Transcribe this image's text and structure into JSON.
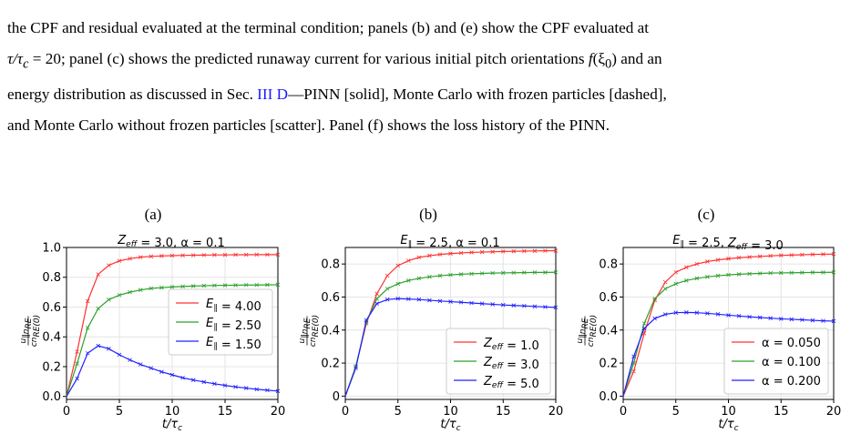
{
  "caption": {
    "line1_tail": "the CPF and residual evaluated at the terminal condition; panels (b) and (e) show the CPF evaluated at",
    "line2_a": "τ/τ",
    "line2_b": " = 20; panel (c) shows the predicted runaway current for various initial pitch orientations ",
    "line2_c": "f",
    "line2_d": "(ξ",
    "line2_e": ") and an",
    "line3_a": "energy distribution as discussed in Sec. ",
    "line3_ref": "III D",
    "line3_b": "—PINN [solid], Monte Carlo with frozen particles [dashed],",
    "line4": "and Monte Carlo without frozen particles [scatter]. Panel (f) shows the loss history of the PINN."
  },
  "panels": [
    {
      "letter": "(a)",
      "title": "Z_eff = 3.0, α = 0.1"
    },
    {
      "letter": "(b)",
      "title": "E_∥ = 2.5, α = 0.1"
    },
    {
      "letter": "(c)",
      "title": "E_∥ = 2.5, Z_eff = 3.0"
    }
  ],
  "colors": {
    "red": "#ff3030",
    "green": "#2ca02c",
    "blue": "#2020ff"
  },
  "chart_data": [
    {
      "type": "line",
      "title": "Zeff = 3.0, α = 0.1",
      "xlabel": "t/τc",
      "ylabel": "u∥nRE / c nRE(0)",
      "xlim": [
        0,
        20
      ],
      "ylim": [
        -0.02,
        1.0
      ],
      "xticks": [
        0,
        5,
        10,
        15,
        20
      ],
      "yticks": [
        0.0,
        0.2,
        0.4,
        0.6,
        0.8,
        1.0
      ],
      "ytick_labels": [
        "0.0",
        "0.2",
        "0.4",
        "0.6",
        "0.8",
        "1.0"
      ],
      "legend_loc": "center-right",
      "x": [
        0,
        1,
        2,
        3,
        4,
        5,
        6,
        7,
        8,
        9,
        10,
        11,
        12,
        13,
        14,
        15,
        16,
        17,
        18,
        19,
        20
      ],
      "series": [
        {
          "name": "E∥ = 4.00",
          "color": "red",
          "values": [
            0.0,
            0.3,
            0.64,
            0.82,
            0.88,
            0.91,
            0.925,
            0.935,
            0.94,
            0.943,
            0.945,
            0.947,
            0.948,
            0.949,
            0.95,
            0.95,
            0.951,
            0.951,
            0.952,
            0.952,
            0.952
          ]
        },
        {
          "name": "E∥ = 2.50",
          "color": "green",
          "values": [
            0.0,
            0.22,
            0.46,
            0.59,
            0.65,
            0.68,
            0.7,
            0.715,
            0.725,
            0.73,
            0.735,
            0.738,
            0.741,
            0.743,
            0.745,
            0.746,
            0.747,
            0.748,
            0.748,
            0.749,
            0.75
          ]
        },
        {
          "name": "E∥ = 1.50",
          "color": "blue",
          "values": [
            0.0,
            0.12,
            0.29,
            0.34,
            0.32,
            0.28,
            0.245,
            0.215,
            0.19,
            0.165,
            0.145,
            0.125,
            0.11,
            0.097,
            0.085,
            0.074,
            0.064,
            0.056,
            0.048,
            0.042,
            0.036
          ]
        }
      ]
    },
    {
      "type": "line",
      "title": "E∥ = 2.5, α = 0.1",
      "xlabel": "t/τc",
      "ylabel": "u∥nRE / c nRE(0)",
      "xlim": [
        0,
        20
      ],
      "ylim": [
        -0.02,
        0.9
      ],
      "xticks": [
        0,
        5,
        10,
        15,
        20
      ],
      "yticks": [
        0.0,
        0.2,
        0.4,
        0.6,
        0.8
      ],
      "ytick_labels": [
        "0",
        "0.2",
        "0.4",
        "0.6",
        "0.8"
      ],
      "legend_loc": "lower-right",
      "x": [
        0,
        1,
        2,
        3,
        4,
        5,
        6,
        7,
        8,
        9,
        10,
        11,
        12,
        13,
        14,
        15,
        16,
        17,
        18,
        19,
        20
      ],
      "series": [
        {
          "name": "Zeff = 1.0",
          "color": "red",
          "values": [
            0.0,
            0.18,
            0.44,
            0.62,
            0.73,
            0.79,
            0.82,
            0.84,
            0.85,
            0.858,
            0.863,
            0.867,
            0.87,
            0.872,
            0.874,
            0.876,
            0.877,
            0.878,
            0.879,
            0.88,
            0.88
          ]
        },
        {
          "name": "Zeff = 3.0",
          "color": "green",
          "values": [
            0.0,
            0.18,
            0.45,
            0.59,
            0.65,
            0.68,
            0.7,
            0.713,
            0.722,
            0.729,
            0.734,
            0.738,
            0.741,
            0.743,
            0.745,
            0.746,
            0.747,
            0.748,
            0.749,
            0.749,
            0.75
          ]
        },
        {
          "name": "Zeff = 5.0",
          "color": "blue",
          "values": [
            0.0,
            0.17,
            0.46,
            0.56,
            0.585,
            0.59,
            0.588,
            0.585,
            0.58,
            0.576,
            0.572,
            0.568,
            0.564,
            0.56,
            0.556,
            0.552,
            0.549,
            0.546,
            0.543,
            0.54,
            0.537
          ]
        }
      ]
    },
    {
      "type": "line",
      "title": "E∥ = 2.5, Zeff = 3.0",
      "xlabel": "t/τc",
      "ylabel": "u∥nRE / c nRE(0)",
      "xlim": [
        0,
        20
      ],
      "ylim": [
        -0.02,
        0.9
      ],
      "xticks": [
        0,
        5,
        10,
        15,
        20
      ],
      "yticks": [
        0.0,
        0.2,
        0.4,
        0.6,
        0.8
      ],
      "ytick_labels": [
        "0.0",
        "0.2",
        "0.4",
        "0.6",
        "0.8"
      ],
      "legend_loc": "lower-right",
      "x": [
        0,
        1,
        2,
        3,
        4,
        5,
        6,
        7,
        8,
        9,
        10,
        11,
        12,
        13,
        14,
        15,
        16,
        17,
        18,
        19,
        20
      ],
      "series": [
        {
          "name": "α = 0.050",
          "color": "red",
          "values": [
            0.0,
            0.15,
            0.38,
            0.58,
            0.69,
            0.75,
            0.78,
            0.8,
            0.815,
            0.825,
            0.832,
            0.838,
            0.842,
            0.846,
            0.849,
            0.852,
            0.854,
            0.856,
            0.858,
            0.859,
            0.86
          ]
        },
        {
          "name": "α = 0.100",
          "color": "green",
          "values": [
            0.0,
            0.2,
            0.44,
            0.59,
            0.65,
            0.68,
            0.7,
            0.713,
            0.722,
            0.729,
            0.734,
            0.738,
            0.741,
            0.743,
            0.745,
            0.746,
            0.747,
            0.748,
            0.749,
            0.749,
            0.75
          ]
        },
        {
          "name": "α = 0.200",
          "color": "blue",
          "values": [
            0.0,
            0.24,
            0.41,
            0.47,
            0.495,
            0.505,
            0.507,
            0.505,
            0.501,
            0.496,
            0.49,
            0.485,
            0.48,
            0.476,
            0.472,
            0.468,
            0.465,
            0.462,
            0.459,
            0.456,
            0.454
          ]
        }
      ]
    }
  ]
}
